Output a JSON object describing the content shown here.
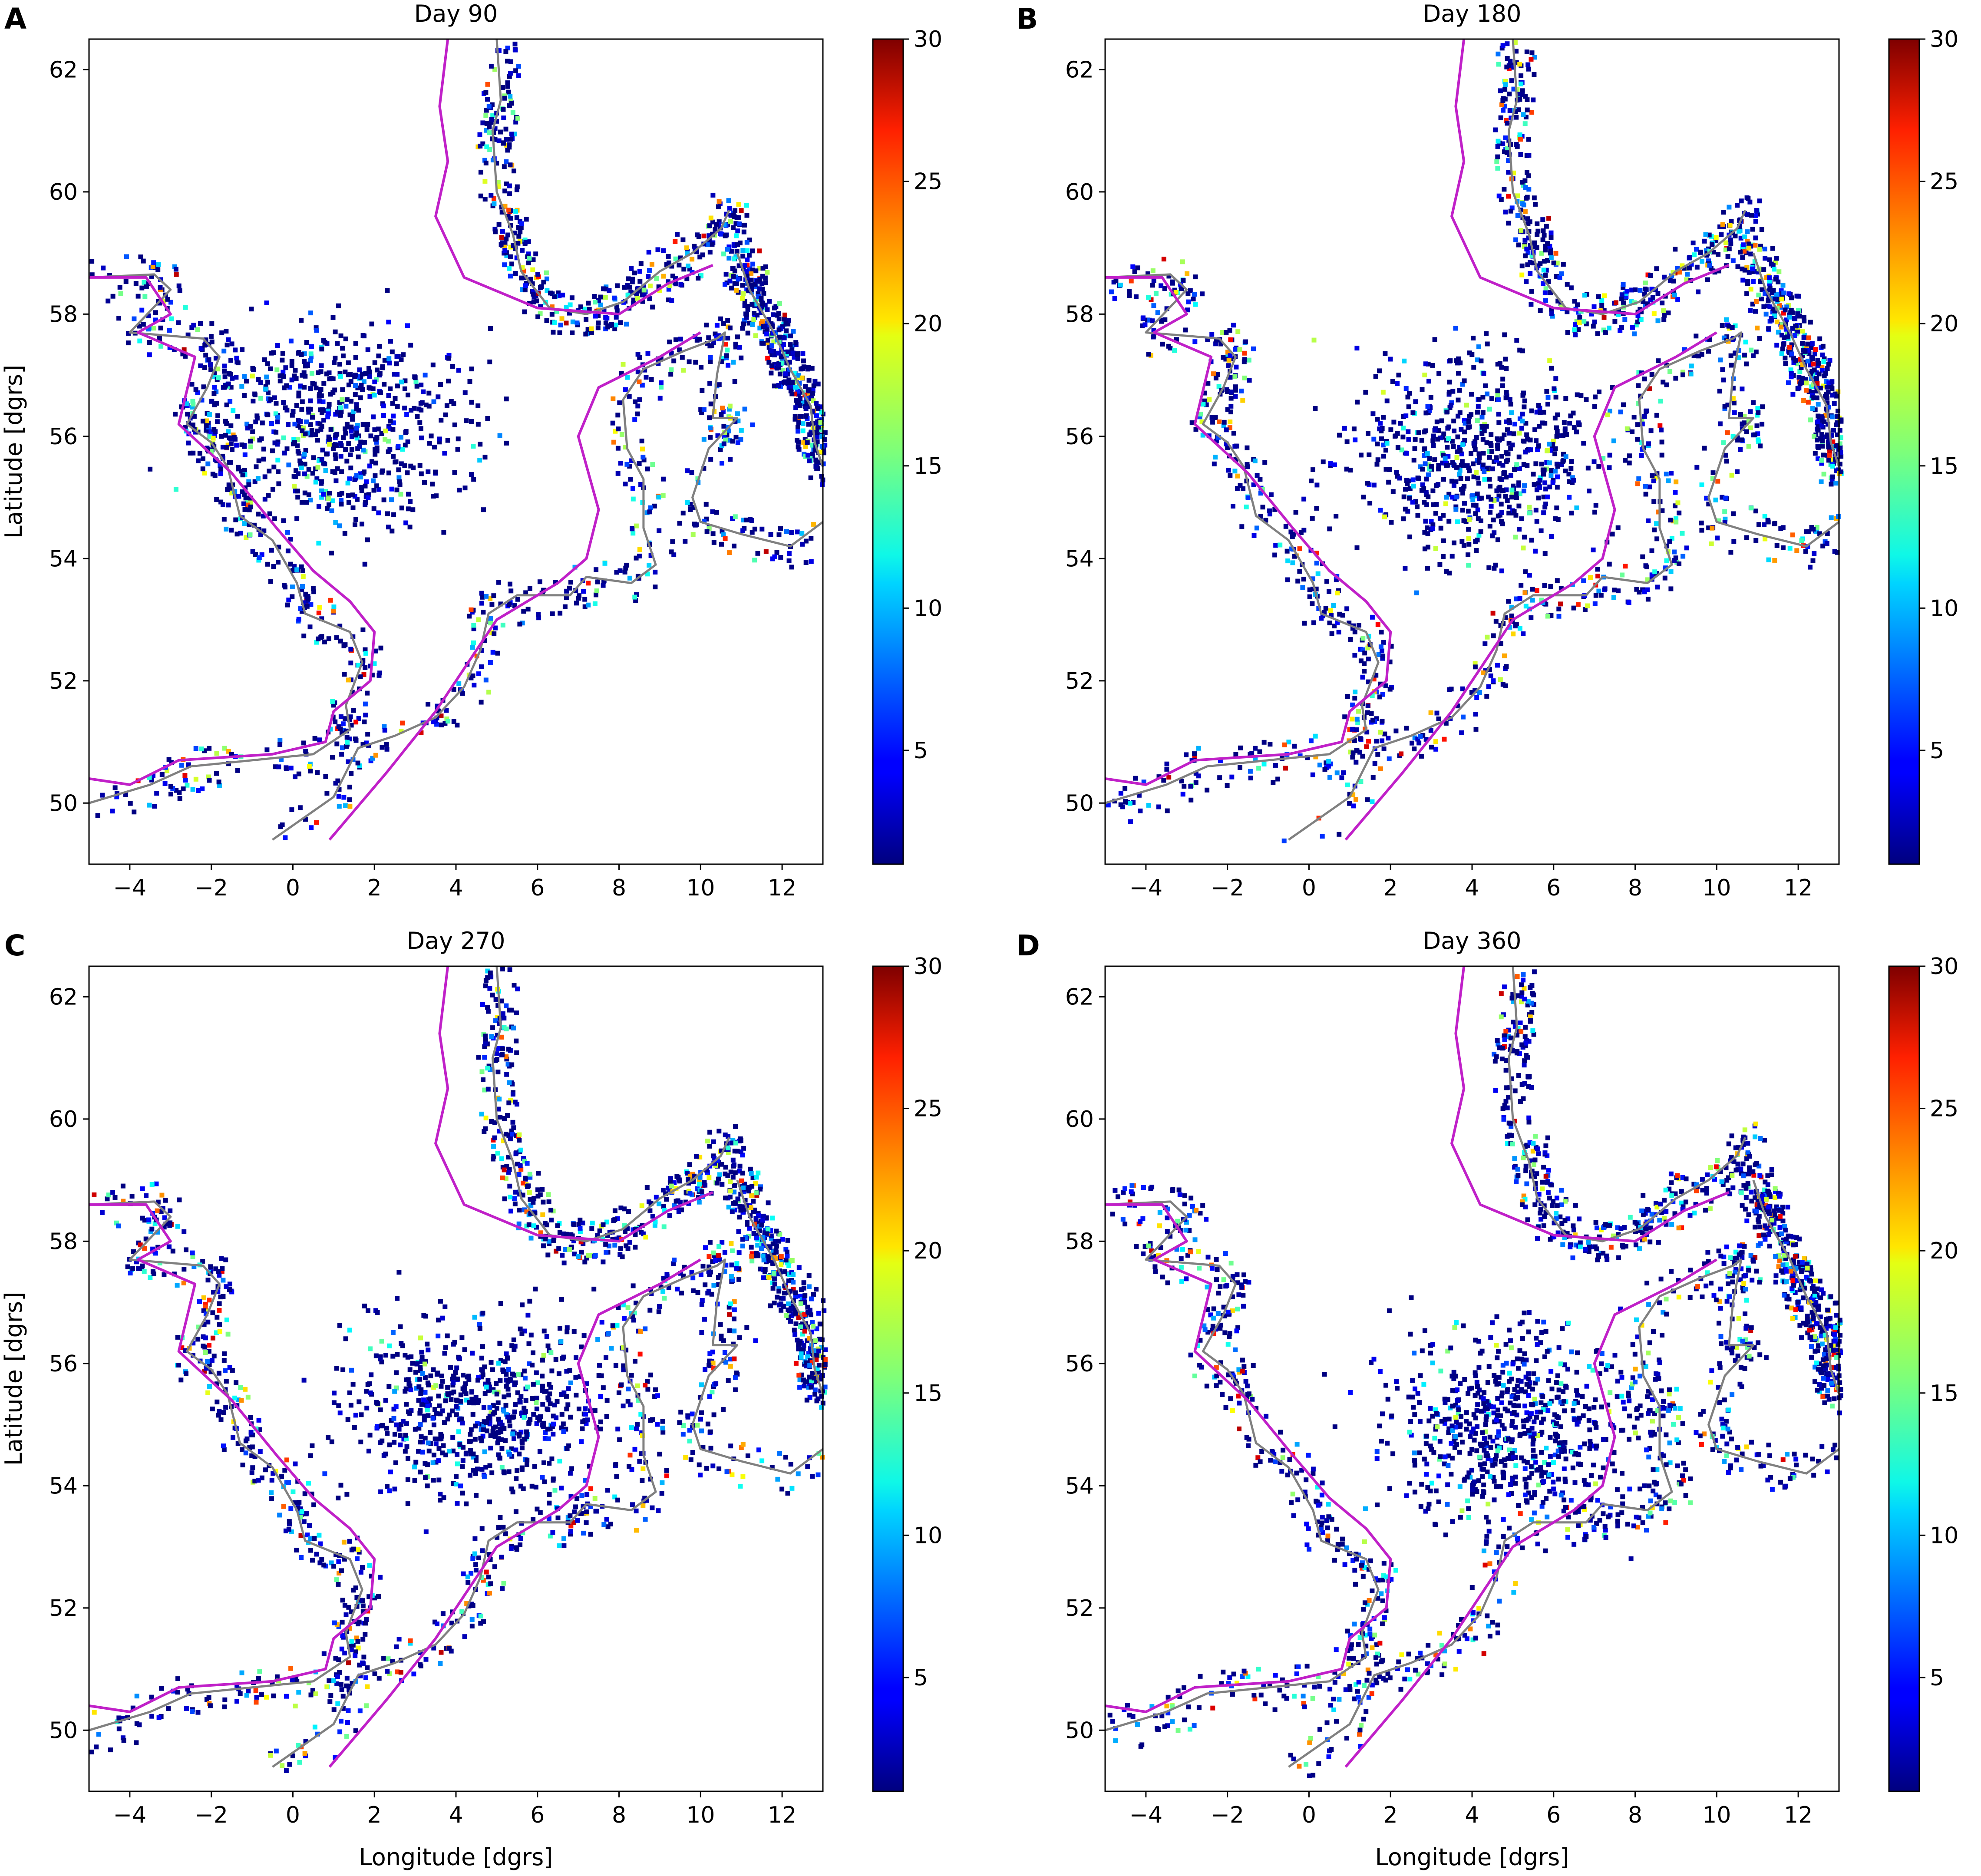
{
  "chart_data": [
    {
      "type": "heatmap",
      "panel_label": "A",
      "title": "Day 90",
      "xlabel": "",
      "ylabel": "Latitude [dgrs]",
      "xlim": [
        -5,
        13
      ],
      "ylim": [
        49,
        62.5
      ],
      "xticks": [
        "−4",
        "−2",
        "0",
        "2",
        "4",
        "6",
        "8",
        "10",
        "12"
      ],
      "xtick_values": [
        -4,
        -2,
        0,
        2,
        4,
        6,
        8,
        10,
        12
      ],
      "yticks": [
        "50",
        "52",
        "54",
        "56",
        "58",
        "60",
        "62"
      ],
      "ytick_values": [
        50,
        52,
        54,
        56,
        58,
        60,
        62
      ],
      "colorbar": {
        "colormap": "jet",
        "range": [
          1,
          30
        ],
        "ticks": [
          "5",
          "10",
          "15",
          "20",
          "25",
          "30"
        ],
        "tick_values": [
          5,
          10,
          15,
          20,
          25,
          30
        ]
      },
      "contour_color": "#c020c8",
      "coast_color": "#808080"
    },
    {
      "type": "heatmap",
      "panel_label": "B",
      "title": "Day 180",
      "xlabel": "",
      "ylabel": "",
      "xlim": [
        -5,
        13
      ],
      "ylim": [
        49,
        62.5
      ],
      "xticks": [
        "−4",
        "−2",
        "0",
        "2",
        "4",
        "6",
        "8",
        "10",
        "12"
      ],
      "xtick_values": [
        -4,
        -2,
        0,
        2,
        4,
        6,
        8,
        10,
        12
      ],
      "yticks": [
        "50",
        "52",
        "54",
        "56",
        "58",
        "60",
        "62"
      ],
      "ytick_values": [
        50,
        52,
        54,
        56,
        58,
        60,
        62
      ],
      "colorbar": {
        "colormap": "jet",
        "range": [
          1,
          30
        ],
        "ticks": [
          "5",
          "10",
          "15",
          "20",
          "25",
          "30"
        ],
        "tick_values": [
          5,
          10,
          15,
          20,
          25,
          30
        ]
      },
      "contour_color": "#c020c8",
      "coast_color": "#808080"
    },
    {
      "type": "heatmap",
      "panel_label": "C",
      "title": "Day 270",
      "xlabel": "Longitude [dgrs]",
      "ylabel": "Latitude [dgrs]",
      "xlim": [
        -5,
        13
      ],
      "ylim": [
        49,
        62.5
      ],
      "xticks": [
        "−4",
        "−2",
        "0",
        "2",
        "4",
        "6",
        "8",
        "10",
        "12"
      ],
      "xtick_values": [
        -4,
        -2,
        0,
        2,
        4,
        6,
        8,
        10,
        12
      ],
      "yticks": [
        "50",
        "52",
        "54",
        "56",
        "58",
        "60",
        "62"
      ],
      "ytick_values": [
        50,
        52,
        54,
        56,
        58,
        60,
        62
      ],
      "colorbar": {
        "colormap": "jet",
        "range": [
          1,
          30
        ],
        "ticks": [
          "5",
          "10",
          "15",
          "20",
          "25",
          "30"
        ],
        "tick_values": [
          5,
          10,
          15,
          20,
          25,
          30
        ]
      },
      "contour_color": "#c020c8",
      "coast_color": "#808080"
    },
    {
      "type": "heatmap",
      "panel_label": "D",
      "title": "Day 360",
      "xlabel": "Longitude [dgrs]",
      "ylabel": "",
      "xlim": [
        -5,
        13
      ],
      "ylim": [
        49,
        62.5
      ],
      "xticks": [
        "−4",
        "−2",
        "0",
        "2",
        "4",
        "6",
        "8",
        "10",
        "12"
      ],
      "xtick_values": [
        -4,
        -2,
        0,
        2,
        4,
        6,
        8,
        10,
        12
      ],
      "yticks": [
        "50",
        "52",
        "54",
        "56",
        "58",
        "60",
        "62"
      ],
      "ytick_values": [
        50,
        52,
        54,
        56,
        58,
        60,
        62
      ],
      "colorbar": {
        "colormap": "jet",
        "range": [
          1,
          30
        ],
        "ticks": [
          "5",
          "10",
          "15",
          "20",
          "25",
          "30"
        ],
        "tick_values": [
          5,
          10,
          15,
          20,
          25,
          30
        ]
      },
      "contour_color": "#c020c8",
      "coast_color": "#808080"
    }
  ]
}
